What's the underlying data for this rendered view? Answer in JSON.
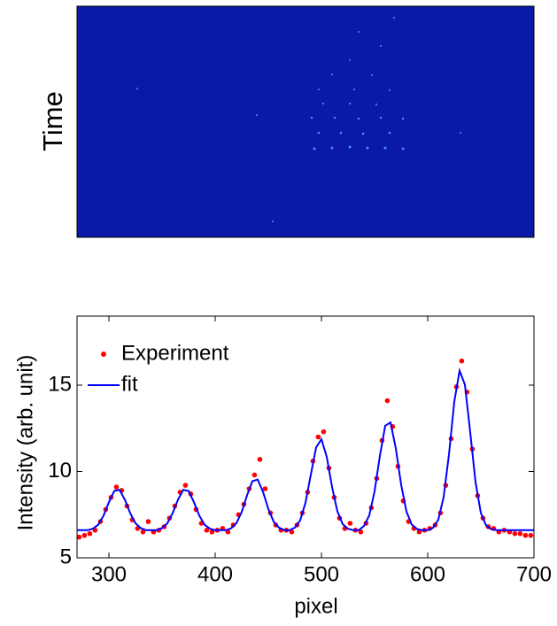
{
  "image_panel": {
    "ylabel": "Time"
  },
  "chart_data": {
    "type": "line",
    "xlabel": "pixel",
    "ylabel": "Intensity (arb. unit)",
    "xlim": [
      270,
      700
    ],
    "xticks": [
      300,
      400,
      500,
      600,
      700
    ],
    "ylim": [
      5,
      19
    ],
    "yticks": [
      5,
      10,
      15
    ],
    "grid": false,
    "legend": "upper left",
    "series": [
      {
        "name": "Experiment",
        "type": "scatter",
        "color": "#ff0000",
        "x": [
          272,
          277,
          282,
          287,
          292,
          297,
          302,
          307,
          312,
          317,
          322,
          327,
          332,
          337,
          342,
          347,
          352,
          357,
          362,
          367,
          372,
          377,
          382,
          387,
          392,
          397,
          402,
          407,
          412,
          417,
          422,
          427,
          432,
          437,
          442,
          447,
          452,
          457,
          462,
          467,
          472,
          477,
          482,
          487,
          492,
          497,
          502,
          507,
          512,
          517,
          522,
          527,
          532,
          537,
          542,
          547,
          552,
          557,
          562,
          567,
          572,
          577,
          582,
          587,
          592,
          597,
          602,
          607,
          612,
          617,
          622,
          627,
          632,
          637,
          642,
          647,
          652,
          657,
          662,
          667,
          672,
          677,
          682,
          687,
          692,
          697
        ],
        "values": [
          6.2,
          6.3,
          6.4,
          6.6,
          7.1,
          7.8,
          8.5,
          9.1,
          8.9,
          8.0,
          7.2,
          6.7,
          6.5,
          7.1,
          6.5,
          6.6,
          6.8,
          7.3,
          8.0,
          8.8,
          9.2,
          8.7,
          7.8,
          7.0,
          6.6,
          6.5,
          6.6,
          6.7,
          6.5,
          6.9,
          7.5,
          8.1,
          9.0,
          9.8,
          10.7,
          9.0,
          7.6,
          6.9,
          6.6,
          6.6,
          6.5,
          6.9,
          7.6,
          8.8,
          10.6,
          12.0,
          12.3,
          10.2,
          8.5,
          7.3,
          6.7,
          7.0,
          6.6,
          6.5,
          7.0,
          7.9,
          9.6,
          11.8,
          14.1,
          12.6,
          10.3,
          8.3,
          7.1,
          6.7,
          6.5,
          6.6,
          6.7,
          6.9,
          7.6,
          9.2,
          11.9,
          14.9,
          16.4,
          14.6,
          11.3,
          8.6,
          7.3,
          6.8,
          6.7,
          6.5,
          6.6,
          6.5,
          6.4,
          6.4,
          6.3,
          6.3
        ]
      },
      {
        "name": "fit",
        "type": "line",
        "color": "#0000ff",
        "x": [
          270,
          275,
          280,
          285,
          290,
          295,
          300,
          305,
          310,
          315,
          320,
          325,
          330,
          335,
          340,
          345,
          350,
          355,
          360,
          365,
          370,
          375,
          380,
          385,
          390,
          395,
          400,
          405,
          410,
          415,
          420,
          425,
          430,
          435,
          440,
          445,
          450,
          455,
          460,
          465,
          470,
          475,
          480,
          485,
          490,
          495,
          500,
          505,
          510,
          515,
          520,
          525,
          530,
          535,
          540,
          545,
          550,
          555,
          560,
          565,
          570,
          575,
          580,
          585,
          590,
          595,
          600,
          605,
          610,
          615,
          620,
          625,
          630,
          635,
          640,
          645,
          650,
          655,
          660,
          665,
          670,
          675,
          680,
          685,
          690,
          695,
          700
        ],
        "values": [
          6.6,
          6.6,
          6.6,
          6.69,
          6.92,
          7.45,
          8.22,
          8.87,
          8.94,
          8.37,
          7.59,
          7.0,
          6.72,
          6.6,
          6.6,
          6.6,
          6.72,
          7.0,
          7.59,
          8.37,
          8.94,
          8.87,
          8.22,
          7.45,
          6.92,
          6.69,
          6.6,
          6.6,
          6.6,
          6.71,
          7.01,
          7.66,
          8.62,
          9.44,
          9.53,
          8.82,
          7.83,
          7.1,
          6.75,
          6.6,
          6.6,
          6.75,
          7.17,
          8.2,
          9.82,
          11.4,
          11.87,
          10.84,
          9.1,
          7.69,
          6.95,
          6.68,
          6.6,
          6.6,
          6.84,
          7.46,
          8.85,
          10.91,
          12.65,
          12.84,
          11.33,
          9.23,
          7.68,
          6.92,
          6.67,
          6.6,
          6.6,
          6.74,
          7.21,
          8.52,
          10.98,
          14.04,
          15.84,
          15.03,
          12.27,
          9.38,
          7.6,
          6.87,
          6.65,
          6.6,
          6.6,
          6.6,
          6.6,
          6.6,
          6.6,
          6.6,
          6.6
        ]
      }
    ]
  }
}
